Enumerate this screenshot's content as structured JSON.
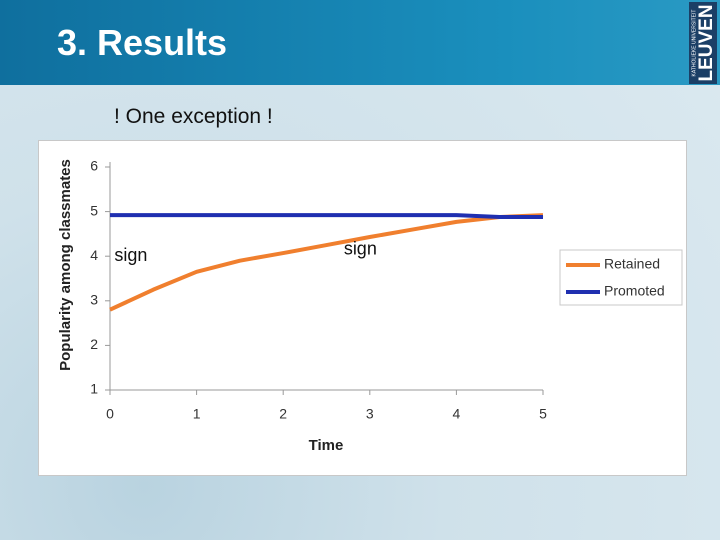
{
  "header": {
    "title": "3. Results",
    "logo": {
      "name": "LEUVEN",
      "tagline": "KATHOLIEKE UNIVERSITEIT"
    }
  },
  "subtitle": "! One exception !",
  "chart_data": {
    "type": "line",
    "xlabel": "Time",
    "ylabel": "Popularity among classmates",
    "x": [
      0,
      0.5,
      1,
      1.5,
      2,
      2.5,
      3,
      3.5,
      4,
      4.5,
      5
    ],
    "series": [
      {
        "name": "Retained",
        "color": "#f07f2e",
        "values": [
          2.8,
          3.25,
          3.65,
          3.9,
          4.07,
          4.25,
          4.43,
          4.6,
          4.77,
          4.88,
          4.92
        ]
      },
      {
        "name": "Promoted",
        "color": "#1f2fb0",
        "values": [
          4.92,
          4.92,
          4.92,
          4.92,
          4.92,
          4.92,
          4.92,
          4.92,
          4.92,
          4.88,
          4.88
        ]
      }
    ],
    "xlim": [
      0,
      5
    ],
    "xticks": [
      0,
      1,
      2,
      3,
      4,
      5
    ],
    "ylim": [
      1,
      6
    ],
    "yticks": [
      1,
      2,
      3,
      4,
      5,
      6
    ],
    "grid": false,
    "legend": "right",
    "annotations": [
      {
        "text": "sign",
        "x": 0.05,
        "y": 4
      },
      {
        "text": "sign",
        "x": 2.7,
        "y": 4.15
      }
    ]
  }
}
